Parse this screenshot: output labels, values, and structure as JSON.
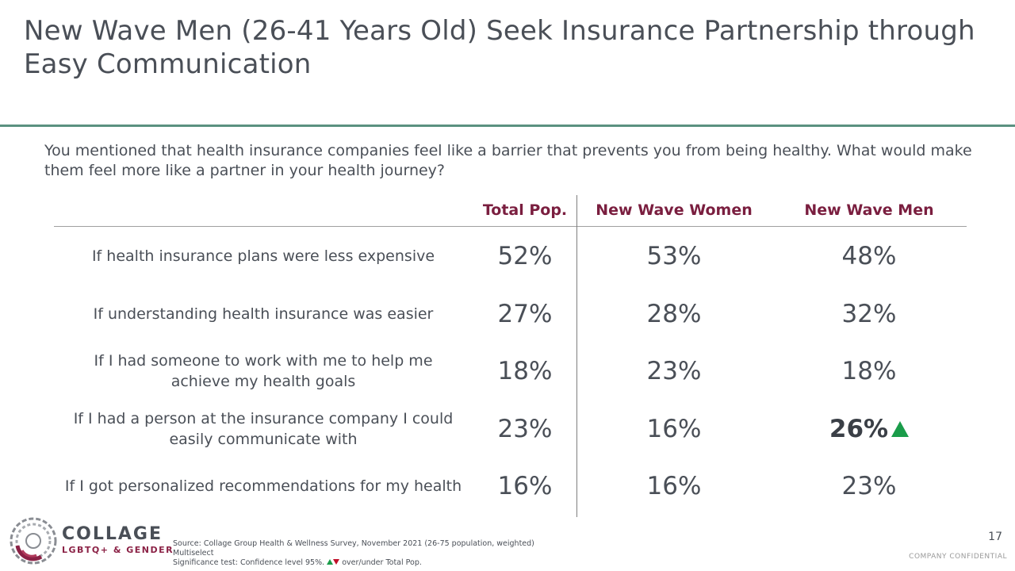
{
  "slide": {
    "title": "New Wave Men (26-41 Years Old) Seek Insurance Partnership through Easy Communication",
    "question": "You mentioned that health insurance companies feel like a barrier that prevents you from being healthy. What would make them feel more like a partner in your health journey?",
    "page_number": "17",
    "confidential": "COMPANY CONFIDENTIAL"
  },
  "table": {
    "headers": [
      "Total Pop.",
      "New Wave Women",
      "New Wave Men"
    ],
    "rows": [
      {
        "label": "If health insurance plans were less expensive",
        "total": "52%",
        "women": "53%",
        "men": "48%"
      },
      {
        "label": "If understanding health insurance was easier",
        "total": "27%",
        "women": "28%",
        "men": "32%"
      },
      {
        "label": "If I had someone to work with me to help me achieve my health goals",
        "total": "18%",
        "women": "23%",
        "men": "18%"
      },
      {
        "label": "If I had a person at the insurance company I could easily communicate with",
        "total": "23%",
        "women": "16%",
        "men": "26%"
      },
      {
        "label": "If I got personalized recommendations for my health",
        "total": "16%",
        "women": "16%",
        "men": "23%"
      }
    ],
    "significant_up_color": "#1a9c4a",
    "significant_down_color": "#c0102a"
  },
  "footer": {
    "source": "Source: Collage Group Health & Wellness Survey, November 2021 (26-75 population, weighted)",
    "multiselect": "Multiselect",
    "sig_prefix": "Significance test: Confidence level 95%.",
    "sig_suffix": "over/under Total Pop."
  },
  "logo": {
    "word": "COLLAGE",
    "sub": "LGBTQ+ & GENDER"
  },
  "colors": {
    "header_text": "#7a1e3f",
    "title_rule": "#5b9180"
  }
}
